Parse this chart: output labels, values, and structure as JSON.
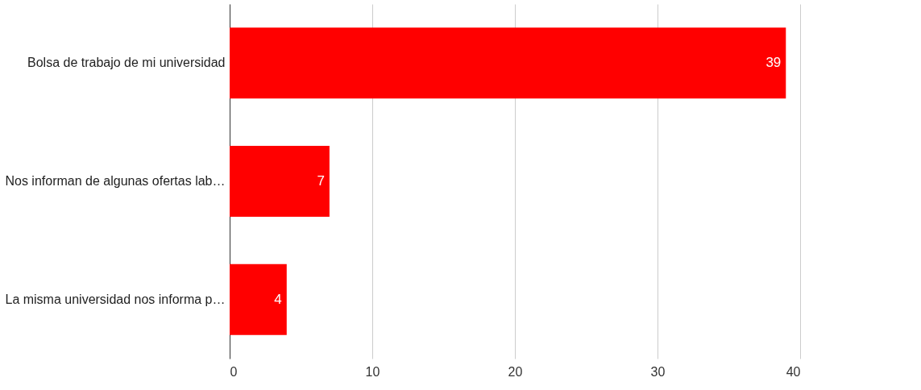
{
  "chart_data": {
    "type": "bar",
    "orientation": "horizontal",
    "categories": [
      "Bolsa de trabajo de mi universidad",
      "Nos informan de algunas ofertas lab…",
      "La misma universidad nos informa p…"
    ],
    "values": [
      39,
      7,
      4
    ],
    "color": "#ff0000",
    "xlim": [
      0,
      40
    ],
    "xticks": [
      0,
      10,
      20,
      30,
      40
    ],
    "grid": "x",
    "data_labels": true
  }
}
